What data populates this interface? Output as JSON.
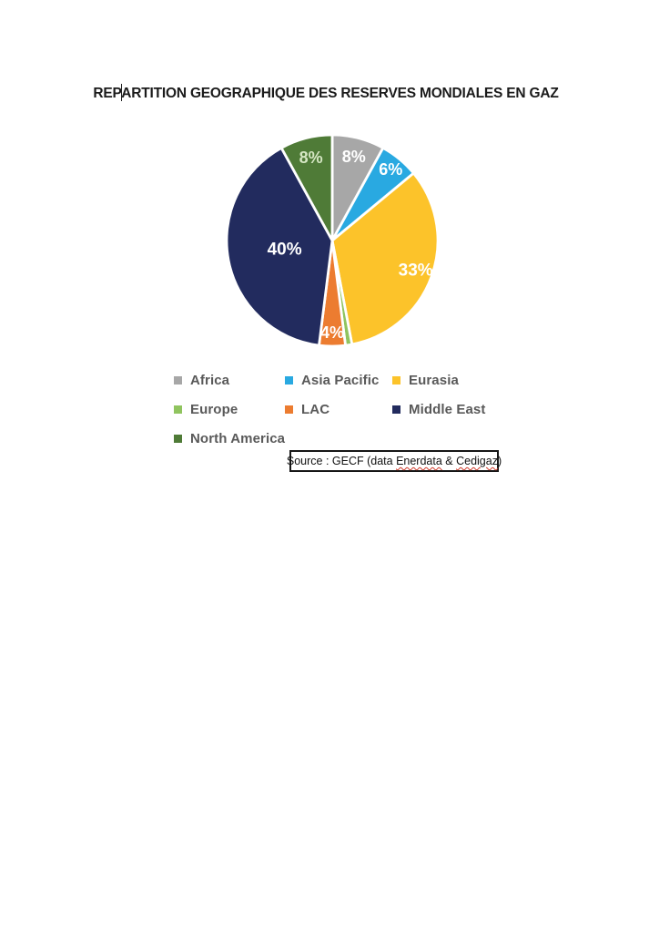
{
  "page": {
    "title_part1": "REP",
    "title_part2": "ARTITION GEOGRAPHIQUE DES RESERVES MONDIALES EN GAZ"
  },
  "chart_data": {
    "type": "pie",
    "title": "REPARTITION GEOGRAPHIQUE DES RESERVES MONDIALES EN GAZ",
    "legend_position": "bottom",
    "start_angle_deg": 0,
    "direction": "clockwise",
    "slices": [
      {
        "label": "Africa",
        "value": 8,
        "data_label": "8%",
        "color": "#a7a7a7",
        "label_color": "#ffffff",
        "label_radius": 0.82
      },
      {
        "label": "Asia Pacific",
        "value": 6,
        "data_label": "6%",
        "color": "#29a9e1",
        "label_color": "#ffffff",
        "label_radius": 0.87
      },
      {
        "label": "Eurasia",
        "value": 33,
        "data_label": "33%",
        "color": "#fcc32a",
        "label_color": "#ffffff",
        "label_radius": 0.84
      },
      {
        "label": "Europe",
        "value": 1,
        "data_label": "",
        "color": "#90c45f",
        "label_color": "#ffffff",
        "label_radius": 0.8
      },
      {
        "label": "LAC",
        "value": 4,
        "data_label": "4%",
        "color": "#ec7c30",
        "label_color": "#ffffff",
        "label_radius": 0.87
      },
      {
        "label": "Middle East",
        "value": 40,
        "data_label": "40%",
        "color": "#222b5e",
        "label_color": "#ffffff",
        "label_radius": 0.46
      },
      {
        "label": "North America",
        "value": 8,
        "data_label": "8%",
        "color": "#4f7b37",
        "label_color": "#d5e6c3",
        "label_radius": 0.81
      }
    ]
  },
  "source_box": {
    "prefix": "Source : GECF (data ",
    "link1": "Enerdata",
    "separator": " & ",
    "link2": "Cedigaz",
    "suffix": ")"
  }
}
